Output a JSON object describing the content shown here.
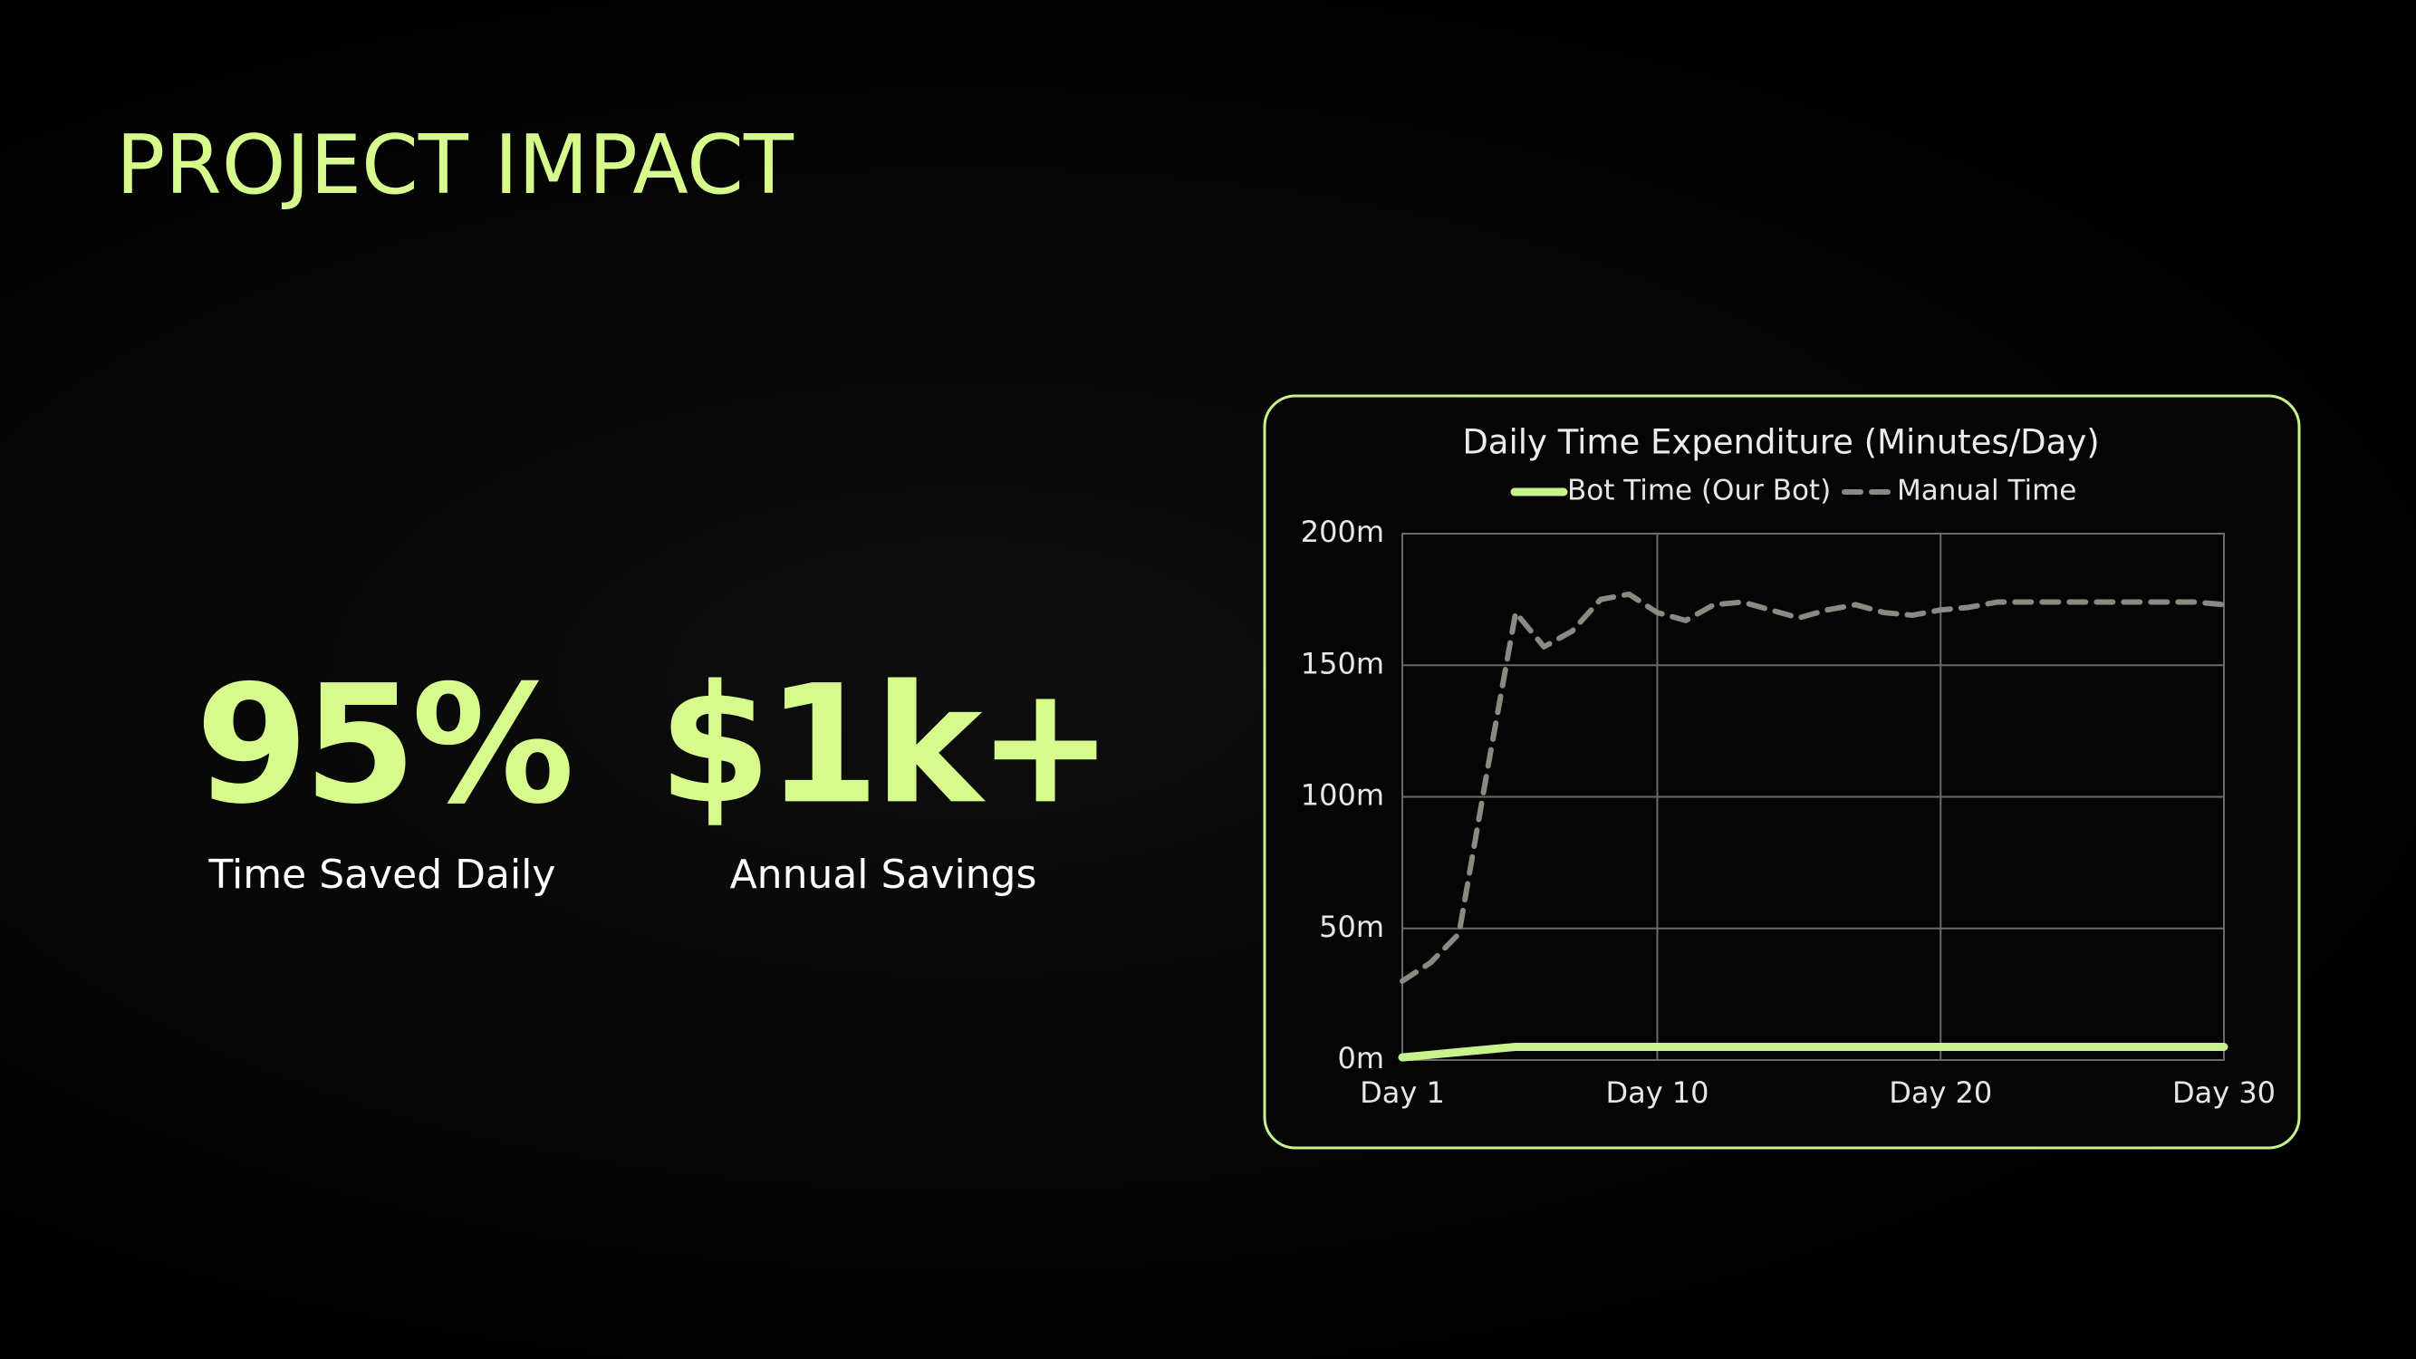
{
  "title": "PROJECT IMPACT",
  "stats": [
    {
      "value": "95%",
      "label": "Time Saved Daily"
    },
    {
      "value": "$1k+",
      "label": "Annual Savings"
    }
  ],
  "chart_data": {
    "type": "line",
    "title": "Daily Time Expenditure (Minutes/Day)",
    "x": [
      1,
      2,
      3,
      4,
      5,
      6,
      7,
      8,
      9,
      10,
      11,
      12,
      13,
      14,
      15,
      16,
      17,
      18,
      19,
      20,
      21,
      22,
      23,
      24,
      25,
      26,
      27,
      28,
      29,
      30
    ],
    "series": [
      {
        "name": "Bot Time (Our Bot)",
        "color": "#c8f28c",
        "linestyle": "solid",
        "values": [
          1,
          2,
          3,
          4,
          5,
          5,
          5,
          5,
          5,
          5,
          5,
          5,
          5,
          5,
          5,
          5,
          5,
          5,
          5,
          5,
          5,
          5,
          5,
          5,
          5,
          5,
          5,
          5,
          5,
          5
        ]
      },
      {
        "name": "Manual Time",
        "color": "#8a8a82",
        "linestyle": "dashed",
        "values": [
          30,
          37,
          48,
          110,
          170,
          157,
          163,
          175,
          177,
          170,
          167,
          173,
          174,
          171,
          168,
          171,
          173,
          170,
          169,
          171,
          172,
          174,
          174,
          174,
          174,
          174,
          174,
          174,
          174,
          173
        ]
      }
    ],
    "xlim": [
      1,
      30
    ],
    "xticks": [
      {
        "value": 1,
        "label": "Day 1"
      },
      {
        "value": 10,
        "label": "Day 10"
      },
      {
        "value": 20,
        "label": "Day 20"
      },
      {
        "value": 30,
        "label": "Day 30"
      }
    ],
    "ylim": [
      0,
      200
    ],
    "yticks": [
      {
        "value": 0,
        "label": "0m"
      },
      {
        "value": 50,
        "label": "50m"
      },
      {
        "value": 100,
        "label": "100m"
      },
      {
        "value": 150,
        "label": "150m"
      },
      {
        "value": 200,
        "label": "200m"
      }
    ],
    "grid": true
  }
}
